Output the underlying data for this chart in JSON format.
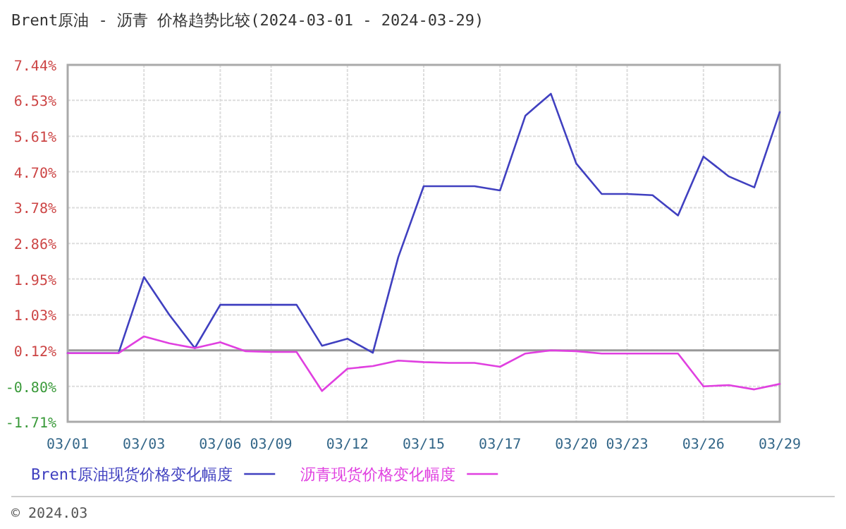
{
  "chart_data": {
    "type": "line",
    "title": "Brent原油 - 沥青 价格趋势比较(2024-03-01 - 2024-03-29)",
    "categories": [
      "03/01",
      null,
      null,
      "03/03",
      null,
      null,
      "03/06",
      null,
      "03/09",
      null,
      null,
      "03/12",
      null,
      null,
      "03/15",
      null,
      null,
      "03/17",
      null,
      null,
      "03/20",
      null,
      "03/23",
      null,
      null,
      "03/26",
      null,
      null,
      "03/29"
    ],
    "series": [
      {
        "name": "Brent原油现货价格变化幅度",
        "color": "#4040c0",
        "values": [
          0.05,
          0.05,
          0.05,
          2.0,
          1.03,
          0.18,
          1.29,
          1.29,
          1.29,
          1.29,
          0.24,
          0.42,
          0.06,
          2.51,
          4.33,
          4.33,
          4.33,
          4.22,
          6.14,
          6.7,
          4.91,
          4.13,
          4.13,
          4.1,
          3.58,
          5.09,
          4.58,
          4.3,
          6.23
        ]
      },
      {
        "name": "沥青现货价格变化幅度",
        "color": "#e040e0",
        "values": [
          0.05,
          0.05,
          0.05,
          0.48,
          0.3,
          0.18,
          0.33,
          0.1,
          0.08,
          0.08,
          -0.92,
          -0.35,
          -0.28,
          -0.14,
          -0.18,
          -0.2,
          -0.2,
          -0.3,
          0.04,
          0.12,
          0.1,
          0.04,
          0.04,
          0.04,
          0.04,
          -0.8,
          -0.77,
          -0.88,
          -0.74
        ]
      }
    ],
    "ylim": [
      -1.71,
      7.44
    ],
    "yticks": [
      {
        "value": 7.44,
        "label": "7.44%"
      },
      {
        "value": 6.53,
        "label": "6.53%"
      },
      {
        "value": 5.61,
        "label": "5.61%"
      },
      {
        "value": 4.7,
        "label": "4.70%"
      },
      {
        "value": 3.78,
        "label": "3.78%"
      },
      {
        "value": 2.86,
        "label": "2.86%"
      },
      {
        "value": 1.95,
        "label": "1.95%"
      },
      {
        "value": 1.03,
        "label": "1.03%"
      },
      {
        "value": 0.12,
        "label": "0.12%"
      },
      {
        "value": -0.8,
        "label": "-0.80%"
      },
      {
        "value": -1.71,
        "label": "-1.71%"
      }
    ],
    "ref_lines": [
      {
        "axis": "y",
        "value": 0.12,
        "color": "#999999"
      }
    ],
    "grid": true,
    "legend": "bottom",
    "marker": "none",
    "line_style": "solid",
    "annotations": [
      "© 2024.03"
    ]
  }
}
